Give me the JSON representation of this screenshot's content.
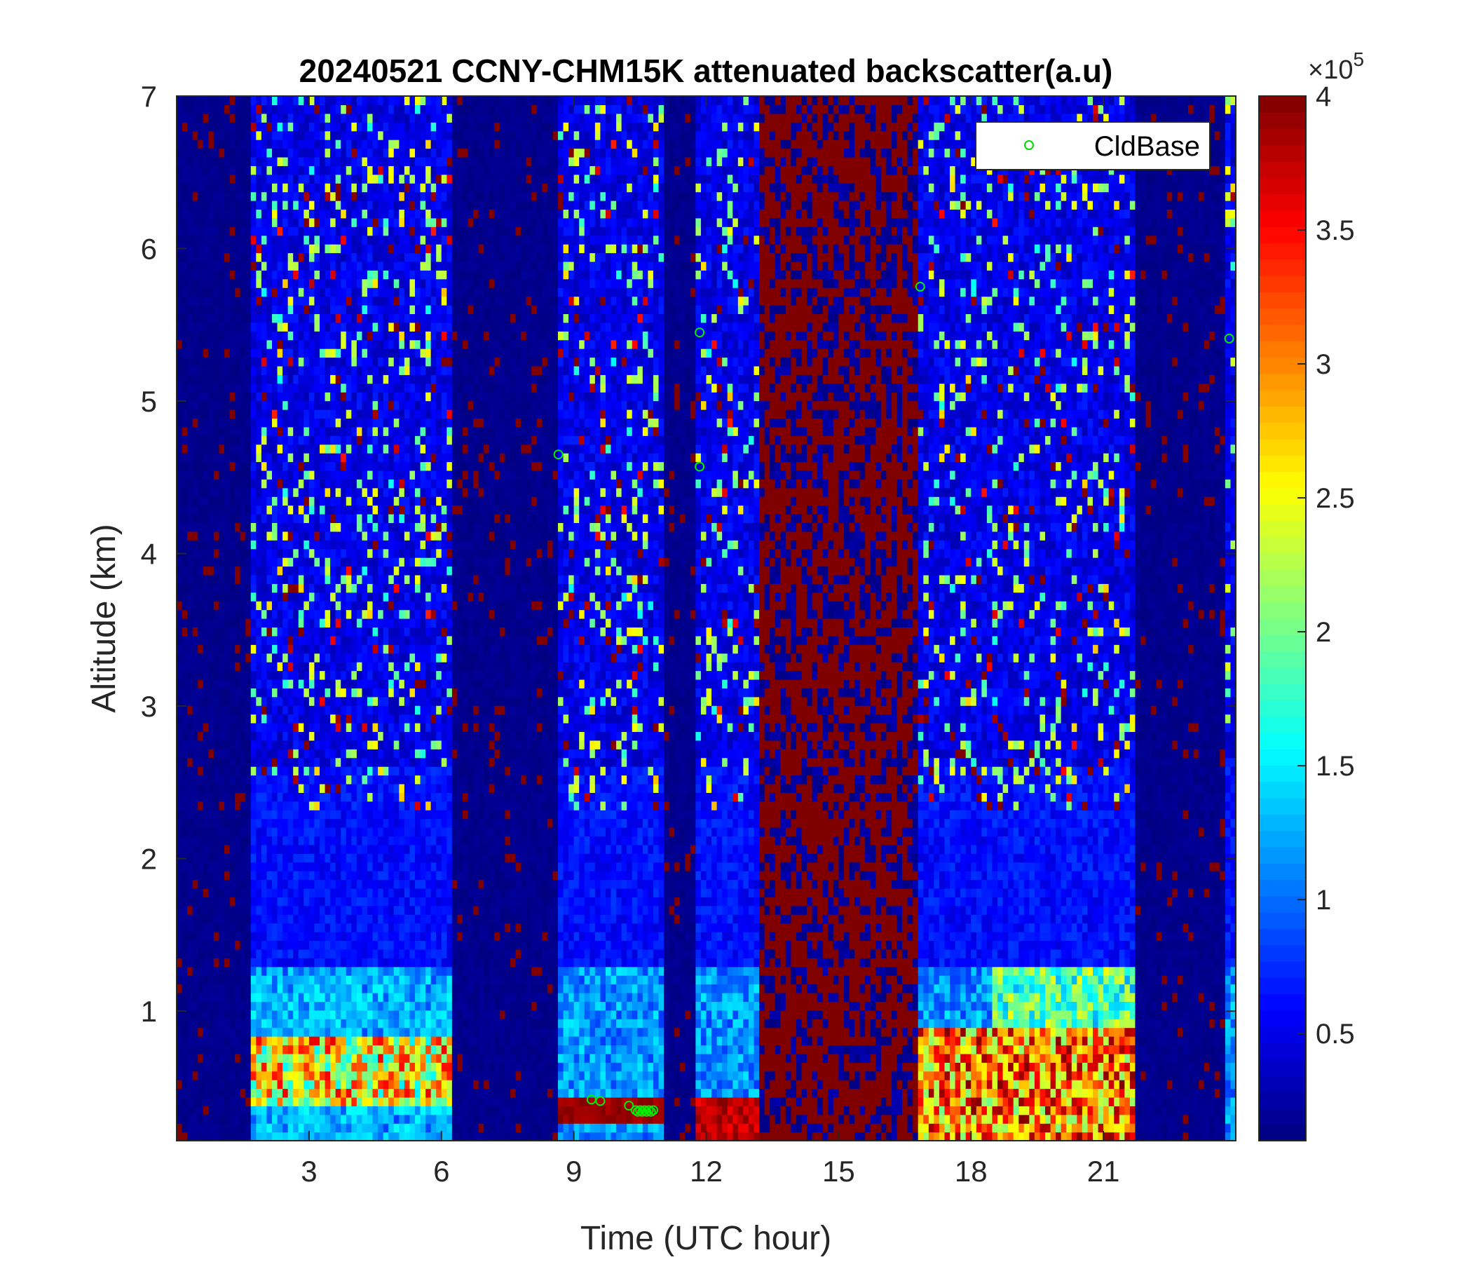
{
  "chart_data": {
    "type": "heatmap",
    "title": "20240521 CCNY-CHM15K attenuated backscatter(a.u)",
    "xlabel": "Time (UTC hour)",
    "ylabel": "Altitude (km)",
    "xlim": [
      0,
      24
    ],
    "ylim": [
      0.15,
      7
    ],
    "x_ticks": [
      3,
      6,
      9,
      12,
      15,
      18,
      21
    ],
    "x_tick_labels": [
      "3",
      "6",
      "9",
      "12",
      "15",
      "18",
      "21"
    ],
    "y_ticks": [
      1,
      2,
      3,
      4,
      5,
      6,
      7
    ],
    "y_tick_labels": [
      "1",
      "2",
      "3",
      "4",
      "5",
      "6",
      "7"
    ],
    "colorbar": {
      "colormap": "jet",
      "range": [
        0.1,
        4
      ],
      "ticks": [
        0.5,
        1,
        1.5,
        2,
        2.5,
        3,
        3.5,
        4
      ],
      "tick_labels": [
        "0.5",
        "1",
        "1.5",
        "2",
        "2.5",
        "3",
        "3.5",
        "4"
      ],
      "exponent_label": "×10",
      "exponent_power": "5"
    },
    "legend": {
      "entries": [
        "CldBase"
      ],
      "placement": "top-right",
      "marker": "circle",
      "marker_color": "#00ff00"
    },
    "time_segments": [
      {
        "x": [
          0.0,
          1.7
        ],
        "state": "no-signal-dark"
      },
      {
        "x": [
          1.7,
          6.2
        ],
        "state": "data"
      },
      {
        "x": [
          6.2,
          8.6
        ],
        "state": "no-signal-dark"
      },
      {
        "x": [
          8.6,
          11.1
        ],
        "state": "data"
      },
      {
        "x": [
          11.1,
          11.8
        ],
        "state": "no-signal-dark"
      },
      {
        "x": [
          11.8,
          13.2
        ],
        "state": "data"
      },
      {
        "x": [
          13.2,
          16.8
        ],
        "state": "saturated-noise"
      },
      {
        "x": [
          16.8,
          21.7
        ],
        "state": "data"
      },
      {
        "x": [
          21.7,
          23.8
        ],
        "state": "no-signal-dark"
      },
      {
        "x": [
          23.8,
          24.0
        ],
        "state": "data"
      }
    ],
    "features": [
      {
        "name": "aerosol-layer",
        "x": [
          1.7,
          6.2
        ],
        "y": [
          0.4,
          0.85
        ],
        "value_range": [
          1.5,
          3.6
        ]
      },
      {
        "name": "boundary-layer",
        "x": [
          1.7,
          6.2
        ],
        "y": [
          0.15,
          1.25
        ],
        "value_range": [
          0.8,
          1.6
        ]
      },
      {
        "name": "low-cloud",
        "x": [
          8.6,
          11.1
        ],
        "y": [
          0.25,
          0.45
        ],
        "value_range": [
          3.8,
          4.0
        ]
      },
      {
        "name": "low-cloud",
        "x": [
          11.8,
          13.2
        ],
        "y": [
          0.15,
          0.45
        ],
        "value_range": [
          3.5,
          4.0
        ]
      },
      {
        "name": "aerosol-plume",
        "x": [
          16.8,
          21.7
        ],
        "y": [
          0.15,
          0.9
        ],
        "value_range": [
          2.0,
          4.0
        ]
      },
      {
        "name": "boundary-layer",
        "x": [
          18.5,
          21.7
        ],
        "y": [
          0.15,
          1.3
        ],
        "value_range": [
          1.2,
          2.5
        ]
      }
    ],
    "series": [
      {
        "name": "CldBase",
        "x": [
          8.65,
          9.4,
          9.6,
          10.25,
          10.4,
          10.45,
          10.5,
          10.55,
          10.6,
          10.65,
          10.7,
          10.75,
          10.8,
          11.85,
          11.85,
          16.85,
          23.85
        ],
        "y": [
          4.65,
          0.42,
          0.41,
          0.38,
          0.35,
          0.34,
          0.35,
          0.34,
          0.35,
          0.34,
          0.35,
          0.34,
          0.35,
          5.45,
          4.57,
          5.75,
          5.41
        ]
      }
    ]
  }
}
